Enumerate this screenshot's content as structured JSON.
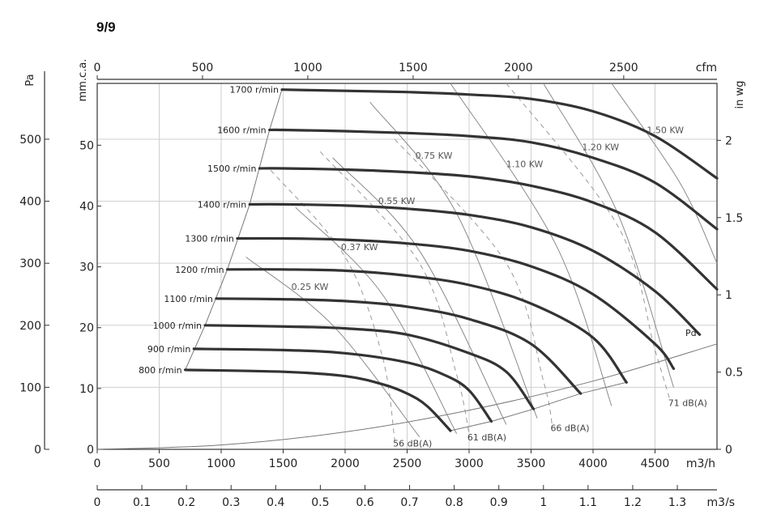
{
  "title": "9/9",
  "chart_data": {
    "type": "line",
    "xlabel": "m3/h",
    "xlabel_top": "cfm",
    "xlabel_bottom": "m3/s",
    "ylabel_left": "Pa",
    "ylabel_left2": "mm.c.a.",
    "ylabel_right": "in wg",
    "xlim": [
      0,
      5000
    ],
    "ylim": [
      0,
      590
    ],
    "x_ticks_m3h": [
      "0",
      "500",
      "1000",
      "1500",
      "2000",
      "2500",
      "3000",
      "3500",
      "4000",
      "4500",
      "m3/h"
    ],
    "x_ticks_cfm": [
      "0",
      "500",
      "1000",
      "1500",
      "2000",
      "2500",
      "cfm"
    ],
    "x_ticks_m3s": [
      "0",
      "0.1",
      "0.2",
      "0.3",
      "0.4",
      "0.5",
      "0.6",
      "0.7",
      "0.8",
      "0.9",
      "1",
      "1.1",
      "1.2",
      "1.3",
      "m3/s"
    ],
    "y_ticks_pa": [
      "0",
      "100",
      "200",
      "300",
      "400",
      "500"
    ],
    "y_ticks_mmca": [
      "0",
      "10",
      "20",
      "30",
      "40",
      "50"
    ],
    "y_ticks_inwg": [
      "0",
      "0.5",
      "1",
      "1.5",
      "2"
    ],
    "speed_series": [
      {
        "name": "800 r/min",
        "x": [
          710,
          1500,
          2000,
          2300,
          2500,
          2660,
          2850
        ],
        "y": [
          128,
          125,
          118,
          105,
          90,
          70,
          30
        ]
      },
      {
        "name": "900 r/min",
        "x": [
          780,
          1500,
          2000,
          2500,
          2800,
          3000,
          3180
        ],
        "y": [
          162,
          160,
          155,
          140,
          120,
          95,
          45
        ]
      },
      {
        "name": "1000 r/min",
        "x": [
          870,
          1500,
          2000,
          2500,
          3000,
          3300,
          3520
        ],
        "y": [
          200,
          198,
          195,
          185,
          155,
          125,
          65
        ]
      },
      {
        "name": "1100 r/min",
        "x": [
          960,
          1500,
          2000,
          2500,
          3000,
          3500,
          3900
        ],
        "y": [
          243,
          242,
          239,
          230,
          210,
          170,
          90
        ]
      },
      {
        "name": "1200 r/min",
        "x": [
          1050,
          1500,
          2000,
          2500,
          3000,
          3500,
          4000,
          4270
        ],
        "y": [
          290,
          290,
          288,
          280,
          265,
          235,
          180,
          108
        ]
      },
      {
        "name": "1300 r/min",
        "x": [
          1130,
          1500,
          2000,
          2500,
          3000,
          3500,
          4000,
          4500,
          4650
        ],
        "y": [
          340,
          340,
          338,
          332,
          320,
          295,
          250,
          170,
          130
        ]
      },
      {
        "name": "1400 r/min",
        "x": [
          1230,
          1500,
          2000,
          2500,
          3000,
          3500,
          4000,
          4500,
          4860
        ],
        "y": [
          395,
          395,
          393,
          388,
          378,
          358,
          320,
          255,
          185
        ]
      },
      {
        "name": "1500 r/min",
        "x": [
          1310,
          1500,
          2000,
          2500,
          3000,
          3500,
          4000,
          4500,
          5000
        ],
        "y": [
          453,
          453,
          451,
          447,
          440,
          425,
          398,
          350,
          258
        ]
      },
      {
        "name": "1600 r/min",
        "x": [
          1390,
          1500,
          2000,
          2500,
          3000,
          3500,
          4000,
          4500,
          5000
        ],
        "y": [
          515,
          515,
          513,
          510,
          505,
          495,
          470,
          430,
          355
        ]
      },
      {
        "name": "1700 r/min",
        "x": [
          1490,
          2000,
          2500,
          3000,
          3500,
          4000,
          4500,
          5000
        ],
        "y": [
          580,
          578,
          576,
          572,
          565,
          545,
          505,
          437
        ]
      }
    ],
    "power_lines": [
      {
        "name": "0.25  KW",
        "x": [
          1200,
          1900,
          2600
        ],
        "y": [
          310,
          200,
          20
        ]
      },
      {
        "name": "0.37  KW",
        "x": [
          1600,
          2300,
          2900
        ],
        "y": [
          390,
          250,
          25
        ]
      },
      {
        "name": "0.55  KW",
        "x": [
          1900,
          2600,
          3300
        ],
        "y": [
          470,
          320,
          40
        ]
      },
      {
        "name": "0.75  KW",
        "x": [
          2200,
          2900,
          3550
        ],
        "y": [
          560,
          380,
          50
        ]
      },
      {
        "name": "1.10  KW",
        "x": [
          2850,
          3700,
          4150
        ],
        "y": [
          590,
          330,
          70
        ]
      },
      {
        "name": "1.20  KW",
        "x": [
          3600,
          4200,
          4650
        ],
        "y": [
          590,
          380,
          100
        ]
      },
      {
        "name": "1.50  KW",
        "x": [
          4150,
          4700,
          5000
        ],
        "y": [
          590,
          430,
          300
        ]
      }
    ],
    "noise_lines": [
      {
        "name": "56  dB(A)",
        "x": [
          1400,
          2000,
          2300,
          2400
        ],
        "y": [
          450,
          310,
          150,
          15
        ]
      },
      {
        "name": "61  dB(A)",
        "x": [
          1800,
          2600,
          2900,
          3000
        ],
        "y": [
          480,
          300,
          120,
          25
        ]
      },
      {
        "name": "66  dB(A)",
        "x": [
          2400,
          3300,
          3600,
          3670
        ],
        "y": [
          500,
          300,
          110,
          40
        ]
      },
      {
        "name": "71  dB(A)",
        "x": [
          3300,
          4200,
          4500,
          4620
        ],
        "y": [
          590,
          360,
          160,
          80
        ]
      }
    ],
    "pd_curve": {
      "name": "Pd",
      "x": [
        0,
        1000,
        2000,
        3000,
        4000,
        5000
      ],
      "y": [
        0,
        7,
        28,
        63,
        110,
        170
      ]
    },
    "envelope": {
      "x": [
        710,
        870,
        1050,
        1230,
        1390,
        1490
      ],
      "y": [
        128,
        200,
        290,
        395,
        515,
        580
      ]
    },
    "grid": true
  }
}
